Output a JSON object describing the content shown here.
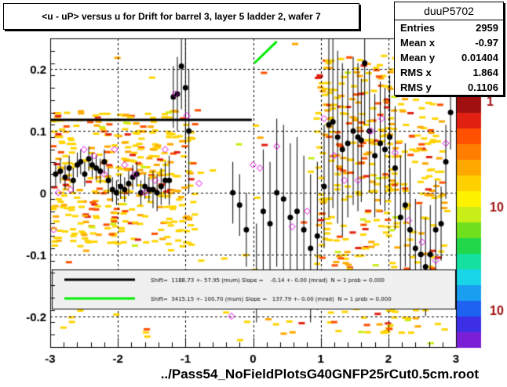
{
  "title": "<u - uP>       versus   u for Drift for barrel 3, layer 5 ladder 2, wafer 7",
  "stats": {
    "name": "duuP5702",
    "rows": [
      {
        "label": "Entries",
        "value": "2959"
      },
      {
        "label": "Mean x",
        "value": "-0.97"
      },
      {
        "label": "Mean y",
        "value": "0.01404"
      },
      {
        "label": "RMS x",
        "value": "1.864"
      },
      {
        "label": "RMS y",
        "value": "0.1106"
      }
    ]
  },
  "xfile_label": "../Pass54_NoFieldPlotsG40GNFP25rCut0.5cm.root",
  "legend": [
    {
      "text": "Shift=  1188.73 +- 57.95 (mum) Slope =    -0.14 +- 0.00 (mrad)  N = 1 prob = 0.000",
      "color": "#000000"
    },
    {
      "text": "Shift=  3415.15 +- 100.70 (mum) Slope =   137.79 +- 0.00 (mrad)  N = 1 prob = 0.000",
      "color": "#00ee00"
    }
  ],
  "colorbar": {
    "labels": [
      "1",
      "10",
      "10"
    ],
    "palette": [
      "#7b1fd6",
      "#3c2fe6",
      "#1e63f0",
      "#1a9ff0",
      "#18d6e8",
      "#16e0a0",
      "#22d84a",
      "#6ee01e",
      "#c8ee18",
      "#fff200",
      "#ffd000",
      "#ffa800",
      "#ff7e00",
      "#ff5000",
      "#e02010",
      "#a01010"
    ]
  },
  "chart_data": {
    "type": "scatter",
    "title": "<u - uP>       versus   u for Drift for barrel 3, layer 5 ladder 2, wafer 7",
    "xlim": [
      -3,
      3
    ],
    "ylim": [
      -0.25,
      0.25
    ],
    "xticks": [
      "-3",
      "-2",
      "-1",
      "0",
      "1",
      "2",
      "3"
    ],
    "yticks": [
      "-0.2",
      "-0.1",
      "0",
      "0.1",
      "0.2"
    ],
    "grid": true,
    "series": [
      {
        "name": "profile",
        "marker": "filled-circle",
        "x": [
          -2.92,
          -2.85,
          -2.78,
          -2.72,
          -2.66,
          -2.6,
          -2.55,
          -2.49,
          -2.43,
          -2.38,
          -2.32,
          -2.26,
          -2.2,
          -2.14,
          -2.08,
          -2.02,
          -1.96,
          -1.9,
          -1.84,
          -1.78,
          -1.72,
          -1.66,
          -1.6,
          -1.54,
          -1.48,
          -1.42,
          -1.36,
          -1.3,
          -1.24,
          -1.18,
          -1.12,
          -1.06,
          -1.0,
          -0.95,
          -0.3,
          -0.2,
          -0.1,
          0.05,
          0.15,
          0.25,
          0.35,
          0.45,
          0.55,
          0.65,
          0.75,
          0.85,
          0.95,
          1.05,
          1.12,
          1.18,
          1.25,
          1.32,
          1.4,
          1.48,
          1.55,
          1.6,
          1.65,
          1.72,
          1.8,
          1.88,
          1.95,
          2.02,
          2.1,
          2.18,
          2.25,
          2.32,
          2.4,
          2.48,
          2.55,
          2.62,
          2.7,
          2.78,
          2.85,
          2.92
        ],
        "y": [
          0.03,
          0.035,
          0.025,
          0.04,
          0.02,
          0.045,
          0.05,
          0.03,
          0.055,
          0.045,
          0.04,
          0.035,
          0.05,
          0.02,
          0.005,
          0.0,
          0.01,
          0.005,
          0.015,
          0.025,
          0.03,
          0.0,
          0.01,
          0.005,
          0.005,
          0.0,
          0.01,
          0.02,
          0.02,
          0.155,
          0.16,
          0.205,
          0.17,
          0.1,
          0.0,
          -0.02,
          -0.06,
          -0.13,
          -0.03,
          -0.05,
          0.0,
          -0.01,
          -0.04,
          -0.03,
          -0.06,
          -0.09,
          -0.07,
          0.01,
          0.11,
          0.115,
          0.09,
          0.07,
          0.08,
          0.1,
          0.09,
          0.085,
          0.21,
          0.1,
          0.06,
          0.08,
          0.07,
          0.09,
          0.04,
          -0.04,
          -0.02,
          -0.06,
          -0.09,
          -0.1,
          -0.12,
          -0.1,
          -0.06,
          -0.05,
          0.05,
          0.13
        ],
        "yerr": [
          0.02,
          0.02,
          0.02,
          0.02,
          0.02,
          0.02,
          0.02,
          0.02,
          0.02,
          0.02,
          0.02,
          0.02,
          0.02,
          0.02,
          0.02,
          0.02,
          0.02,
          0.02,
          0.02,
          0.02,
          0.02,
          0.02,
          0.02,
          0.02,
          0.03,
          0.03,
          0.03,
          0.03,
          0.04,
          0.05,
          0.06,
          0.07,
          0.09,
          0.1,
          0.05,
          0.05,
          0.06,
          0.08,
          0.1,
          0.1,
          0.12,
          0.12,
          0.12,
          0.12,
          0.12,
          0.12,
          0.12,
          0.1,
          0.15,
          0.14,
          0.14,
          0.14,
          0.12,
          0.12,
          0.12,
          0.1,
          0.1,
          0.1,
          0.1,
          0.1,
          0.1,
          0.1,
          0.1,
          0.1,
          0.1,
          0.1,
          0.08,
          0.08,
          0.08,
          0.08,
          0.08,
          0.06,
          0.06,
          0.06
        ]
      },
      {
        "name": "means",
        "marker": "open-diamond",
        "x": [
          -2.95,
          -2.88,
          -2.7,
          -2.5,
          -2.35,
          -2.2,
          -2.05,
          -1.9,
          -1.75,
          -1.6,
          -1.45,
          -1.3,
          -1.15,
          -0.98,
          -0.8,
          -0.32,
          0.0,
          0.1,
          0.35,
          0.58,
          0.8,
          1.05,
          1.2,
          1.35,
          1.55,
          1.75,
          1.9,
          2.1,
          2.3,
          2.5,
          2.7,
          2.85
        ],
        "y": [
          -0.06,
          0.0,
          0.005,
          0.07,
          0.06,
          0.03,
          0.07,
          0.045,
          0.03,
          0.0,
          0.02,
          0.07,
          0.16,
          0.125,
          0.015,
          -0.2,
          0.045,
          0.04,
          0.075,
          -0.055,
          -0.03,
          0.12,
          0.06,
          0.02,
          0.02,
          0.1,
          0.12,
          0.065,
          -0.045,
          -0.08,
          -0.11,
          0.08
        ]
      }
    ],
    "fits": [
      {
        "x0": -3.0,
        "x1": -0.02,
        "y0": 0.118,
        "y1": 0.118,
        "color": "#000000"
      },
      {
        "x0": 0.02,
        "x1": 0.35,
        "y0": 0.21,
        "y1": 0.245,
        "color": "#00ee00"
      }
    ]
  }
}
